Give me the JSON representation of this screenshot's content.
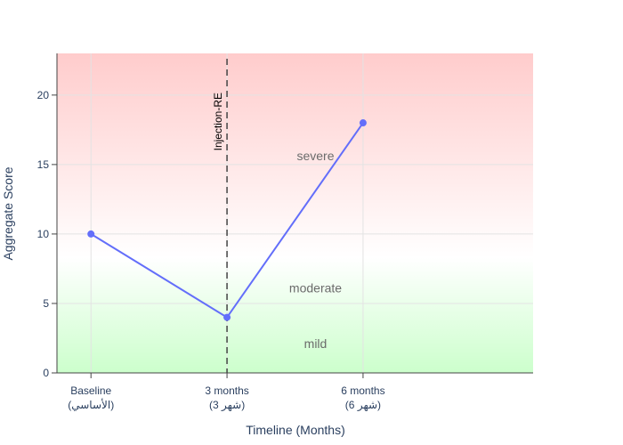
{
  "chart_data": {
    "type": "line",
    "xlabel": "Timeline (Months)",
    "ylabel": "Aggregate Score",
    "x_ticks": [
      {
        "x": 0,
        "line1": "Baseline",
        "line2": "(الأساسي)"
      },
      {
        "x": 3,
        "line1": "3 months",
        "line2": "(شهر 3)"
      },
      {
        "x": 6,
        "line1": "6 months",
        "line2": "(شهر 6)"
      }
    ],
    "xlim": [
      -0.75,
      9.75
    ],
    "ylim": [
      0,
      23
    ],
    "y_ticks": [
      0,
      5,
      10,
      15,
      20
    ],
    "series": [
      {
        "x": [
          0,
          3,
          6
        ],
        "y": [
          10,
          4,
          18
        ],
        "color": "#636efa"
      }
    ],
    "vline": {
      "x": 3,
      "label": "Injection-RE",
      "color": "#444444"
    },
    "zones": [
      {
        "label": "severe",
        "y": 15.3
      },
      {
        "label": "moderate",
        "y": 5.8
      },
      {
        "label": "mild",
        "y": 1.8
      }
    ],
    "background_colors": {
      "top": "#ffcccc",
      "middle": "#ffffff",
      "bottom": "#ccffcc"
    },
    "grid": true
  }
}
